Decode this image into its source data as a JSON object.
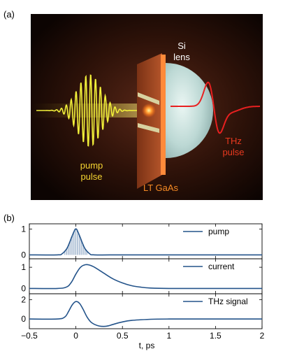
{
  "figure": {
    "panel_a_label": "(a)",
    "panel_b_label": "(b)"
  },
  "diagram": {
    "si_lens_line1": "Si",
    "si_lens_line2": "lens",
    "thz_pulse_line1": "THz",
    "thz_pulse_line2": "pulse",
    "pump_pulse_line1": "pump",
    "pump_pulse_line2": "pulse",
    "lt_gaas": "LT GaAs",
    "colors": {
      "background_center": "#4a1f14",
      "background_edge": "#0e0503",
      "pump_beam": "#f2f03a",
      "thz_beam": "#e82020",
      "pump_text": "#f5d431",
      "thz_text": "#e8391f",
      "gaas_plate": "#a74a22",
      "gaas_edge": "#ff8a3a",
      "lens": "#cfe6e3",
      "label_white": "#ffffff",
      "lt_gaas_text": "#f58a24"
    }
  },
  "chart_data": {
    "type": "line",
    "xlabel": "t, ps",
    "x_ticks": [
      "−0.5",
      "0",
      "0.5",
      "1",
      "1.5",
      "2"
    ],
    "x_tick_values": [
      -0.5,
      0,
      0.5,
      1,
      1.5,
      2
    ],
    "xlim": [
      -0.5,
      2
    ],
    "line_color": "#23538a",
    "panels": [
      {
        "legend": "pump",
        "ylim": [
          -0.15,
          1.2
        ],
        "y_ticks": [
          "1",
          "0"
        ],
        "y_tick_values": [
          1,
          0
        ],
        "x": [
          -0.5,
          -0.2,
          -0.15,
          -0.1,
          -0.07,
          -0.05,
          -0.03,
          -0.01,
          0,
          0.01,
          0.03,
          0.05,
          0.07,
          0.1,
          0.15,
          0.2,
          0.5,
          1,
          1.5,
          2
        ],
        "y": [
          0,
          0,
          0.04,
          0.23,
          0.46,
          0.64,
          0.82,
          0.98,
          1.0,
          0.98,
          0.82,
          0.64,
          0.46,
          0.23,
          0.04,
          0,
          0,
          0,
          0,
          0
        ]
      },
      {
        "legend": "current",
        "ylim": [
          -0.25,
          1.4
        ],
        "y_ticks": [
          "1",
          "0"
        ],
        "y_tick_values": [
          1,
          0
        ],
        "x": [
          -0.5,
          -0.2,
          -0.1,
          -0.05,
          0,
          0.05,
          0.1,
          0.15,
          0.2,
          0.3,
          0.4,
          0.5,
          0.6,
          0.7,
          0.8,
          1,
          1.5,
          2
        ],
        "y": [
          0,
          0,
          0.07,
          0.28,
          0.68,
          1.0,
          1.12,
          1.1,
          1.0,
          0.72,
          0.45,
          0.26,
          0.13,
          0.06,
          0.02,
          0,
          0,
          0
        ]
      },
      {
        "legend": "THz signal",
        "ylim": [
          -1.0,
          2.6
        ],
        "y_ticks": [
          "2",
          "0"
        ],
        "y_tick_values": [
          2,
          0
        ],
        "x": [
          -0.5,
          -0.2,
          -0.12,
          -0.08,
          -0.04,
          0,
          0.04,
          0.08,
          0.12,
          0.16,
          0.2,
          0.25,
          0.3,
          0.35,
          0.4,
          0.5,
          0.6,
          0.8,
          1,
          1.5,
          2
        ],
        "y": [
          0,
          0,
          0.2,
          0.75,
          1.45,
          1.8,
          1.6,
          0.95,
          0.2,
          -0.3,
          -0.55,
          -0.72,
          -0.76,
          -0.7,
          -0.55,
          -0.3,
          -0.14,
          -0.03,
          0,
          0,
          0
        ]
      }
    ]
  }
}
